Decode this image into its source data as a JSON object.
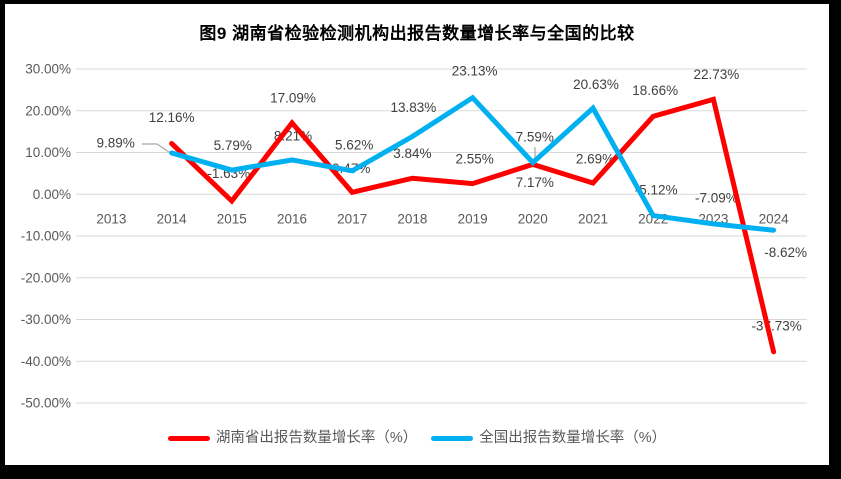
{
  "title": "图9 湖南省检验检测机构出报告数量增长率与全国的比较",
  "chart_data": {
    "type": "line",
    "title": "图9 湖南省检验检测机构出报告数量增长率与全国的比较",
    "categories": [
      "2013",
      "2014",
      "2015",
      "2016",
      "2017",
      "2018",
      "2019",
      "2020",
      "2021",
      "2022",
      "2023",
      "2024"
    ],
    "series": [
      {
        "name": "湖南省出报告数量增长率（%）",
        "color": "#FE0000",
        "values": [
          null,
          12.16,
          -1.63,
          17.09,
          0.47,
          3.84,
          2.55,
          7.17,
          2.69,
          18.66,
          22.73,
          -37.73
        ],
        "labels": [
          null,
          "12.16%",
          "-1.63%",
          "17.09%",
          "0.47%",
          "3.84%",
          "2.55%",
          "7.17%",
          "2.69%",
          "18.66%",
          "22.73%",
          "-37.73%"
        ]
      },
      {
        "name": "全国出报告数量增长率（%）",
        "color": "#00B0F0",
        "values": [
          null,
          9.89,
          5.79,
          8.21,
          5.62,
          13.83,
          23.13,
          7.59,
          20.63,
          -5.12,
          -7.09,
          -8.62
        ],
        "labels": [
          null,
          "9.89%",
          "5.79%",
          "8.21%",
          "5.62%",
          "13.83%",
          "23.13%",
          "7.59%",
          "20.63%",
          "-5.12%",
          "-7.09%",
          "-8.62%"
        ]
      }
    ],
    "xlabel": "",
    "ylabel": "",
    "ylim": [
      -50,
      30
    ],
    "y_step": 10,
    "y_tick_labels": [
      "30.00%",
      "20.00%",
      "10.00%",
      "0.00%",
      "-10.00%",
      "-20.00%",
      "-30.00%",
      "-40.00%",
      "-50.00%"
    ],
    "grid": true,
    "legend_position": "bottom"
  },
  "colors": {
    "hunan_line": "#FE0000",
    "national_line": "#00B0F0",
    "gridline": "#D9D9D9",
    "axis_text": "#595959",
    "data_label_text": "#404040",
    "leader_line": "#A6A6A6",
    "frame_border": "#000000",
    "background": "#FFFFFF"
  }
}
